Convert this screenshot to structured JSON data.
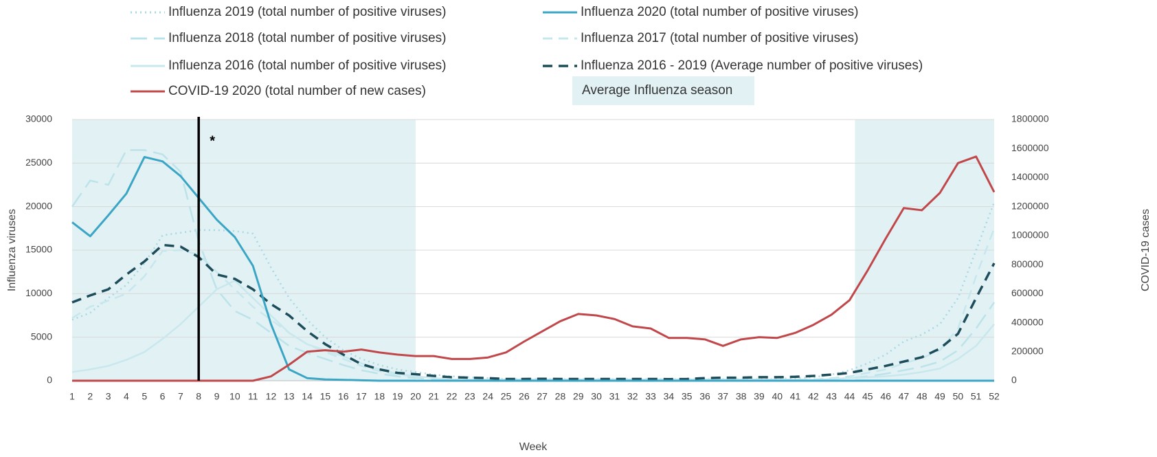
{
  "chart_data": {
    "type": "line",
    "x_label": "Week",
    "y_label": "Influenza viruses",
    "y2_label": "COVID-19 cases",
    "x": [
      1,
      2,
      3,
      4,
      5,
      6,
      7,
      8,
      9,
      10,
      11,
      12,
      13,
      14,
      15,
      16,
      17,
      18,
      19,
      20,
      21,
      22,
      23,
      24,
      25,
      26,
      27,
      28,
      29,
      30,
      31,
      32,
      33,
      34,
      35,
      36,
      37,
      38,
      39,
      40,
      41,
      42,
      43,
      44,
      45,
      46,
      47,
      48,
      49,
      50,
      51,
      52
    ],
    "xlim": [
      1,
      52
    ],
    "xticks": [
      1,
      2,
      3,
      4,
      5,
      6,
      7,
      8,
      9,
      10,
      11,
      12,
      13,
      14,
      15,
      16,
      17,
      18,
      19,
      20,
      21,
      22,
      23,
      24,
      25,
      26,
      27,
      28,
      29,
      30,
      31,
      32,
      33,
      34,
      35,
      36,
      37,
      38,
      39,
      40,
      41,
      42,
      43,
      44,
      45,
      46,
      47,
      48,
      49,
      50,
      51,
      52
    ],
    "ylim": [
      0,
      30000
    ],
    "yticks": [
      0,
      5000,
      10000,
      15000,
      20000,
      25000,
      30000
    ],
    "y2lim": [
      0,
      1800000
    ],
    "y2ticks": [
      0,
      200000,
      400000,
      600000,
      800000,
      1000000,
      1200000,
      1400000,
      1600000,
      1800000
    ],
    "grid": true,
    "season_band": {
      "label": "Average Influenza season",
      "color": "#e2f1f4",
      "ranges": [
        [
          1,
          20
        ],
        [
          44.3,
          52
        ]
      ]
    },
    "vline": {
      "x": 8,
      "label": "*",
      "color": "#000000"
    },
    "series": [
      {
        "name": "Influenza 2019 (total number of positive viruses)",
        "color": "#a6d9e2",
        "style": "dotted",
        "values": [
          7000,
          7800,
          9500,
          11000,
          13500,
          16700,
          17000,
          17300,
          17300,
          17200,
          16900,
          13000,
          9500,
          7000,
          5000,
          3500,
          2500,
          1800,
          1300,
          1000,
          700,
          500,
          400,
          300,
          200,
          200,
          200,
          200,
          200,
          200,
          200,
          200,
          200,
          200,
          200,
          200,
          200,
          200,
          200,
          200,
          300,
          400,
          700,
          1200,
          2000,
          3000,
          4500,
          5300,
          6500,
          9500,
          15000,
          20500
        ]
      },
      {
        "name": "Influenza 2020 (total number of positive viruses)",
        "color": "#3aa5c5",
        "style": "solid",
        "values": [
          18200,
          16600,
          19000,
          21500,
          25700,
          25200,
          23500,
          21000,
          18500,
          16500,
          13200,
          6500,
          1300,
          300,
          150,
          100,
          50,
          0,
          0,
          0,
          0,
          0,
          0,
          0,
          0,
          0,
          0,
          0,
          0,
          0,
          0,
          0,
          0,
          0,
          0,
          0,
          0,
          0,
          0,
          0,
          0,
          0,
          0,
          0,
          0,
          0,
          0,
          0,
          0,
          0,
          0,
          0
        ]
      },
      {
        "name": "Influenza 2018 (total number of positive viruses)",
        "color": "#bce3ea",
        "style": "long-dashed",
        "values": [
          20000,
          23000,
          22500,
          26500,
          26500,
          26000,
          24000,
          16000,
          10500,
          8000,
          7000,
          5500,
          4000,
          3200,
          2500,
          1800,
          1200,
          800,
          500,
          300,
          200,
          100,
          100,
          100,
          100,
          100,
          100,
          100,
          100,
          100,
          100,
          100,
          100,
          100,
          100,
          100,
          100,
          100,
          100,
          100,
          100,
          100,
          200,
          300,
          500,
          800,
          1200,
          1600,
          2200,
          3500,
          6000,
          9000
        ]
      },
      {
        "name": "Influenza 2017 (total number of positive viruses)",
        "color": "#c5e7ed",
        "style": "dashed",
        "values": [
          7200,
          8500,
          9200,
          10000,
          12000,
          14900,
          15000,
          14500,
          12500,
          10500,
          8500,
          7000,
          5500,
          4200,
          3300,
          2500,
          1700,
          1100,
          700,
          500,
          300,
          150,
          150,
          150,
          150,
          150,
          150,
          150,
          150,
          150,
          150,
          150,
          150,
          150,
          150,
          150,
          150,
          150,
          150,
          150,
          150,
          150,
          300,
          500,
          900,
          1300,
          2000,
          2600,
          3500,
          6000,
          12000,
          17500
        ]
      },
      {
        "name": "Influenza 2016 (total number of positive viruses)",
        "color": "#c8e8ee",
        "style": "solid",
        "values": [
          1000,
          1300,
          1700,
          2400,
          3300,
          4800,
          6500,
          8500,
          10500,
          11500,
          9500,
          7500,
          5500,
          4200,
          3500,
          2800,
          2000,
          1300,
          800,
          500,
          300,
          100,
          100,
          100,
          100,
          100,
          100,
          100,
          100,
          100,
          100,
          100,
          100,
          100,
          100,
          100,
          100,
          100,
          100,
          100,
          100,
          100,
          200,
          300,
          400,
          500,
          700,
          1000,
          1400,
          2500,
          4000,
          6500
        ]
      },
      {
        "name": "Influenza 2016 - 2019 (Average number of positive viruses)",
        "color": "#1d4d5a",
        "style": "dashed",
        "values": [
          9000,
          9800,
          10500,
          12200,
          13700,
          15600,
          15400,
          14200,
          12200,
          11700,
          10500,
          8800,
          7500,
          5700,
          4200,
          3000,
          1900,
          1300,
          900,
          750,
          550,
          400,
          350,
          300,
          200,
          200,
          220,
          200,
          200,
          200,
          200,
          200,
          200,
          180,
          200,
          300,
          350,
          350,
          400,
          400,
          450,
          550,
          700,
          900,
          1300,
          1700,
          2200,
          2700,
          3700,
          5400,
          9500,
          13500
        ]
      },
      {
        "name": "COVID-19 2020 (total number of new cases)",
        "color": "#c0474a",
        "style": "solid",
        "axis": "y2",
        "values": [
          0,
          0,
          0,
          0,
          0,
          0,
          0,
          0,
          0,
          0,
          0,
          30000,
          110000,
          200000,
          210000,
          200000,
          215000,
          195000,
          180000,
          170000,
          170000,
          150000,
          150000,
          160000,
          195000,
          270000,
          340000,
          410000,
          460000,
          450000,
          425000,
          375000,
          360000,
          295000,
          295000,
          285000,
          240000,
          285000,
          300000,
          295000,
          330000,
          385000,
          455000,
          555000,
          760000,
          980000,
          1190000,
          1175000,
          1295000,
          1500000,
          1545000,
          1300000
        ]
      }
    ]
  }
}
